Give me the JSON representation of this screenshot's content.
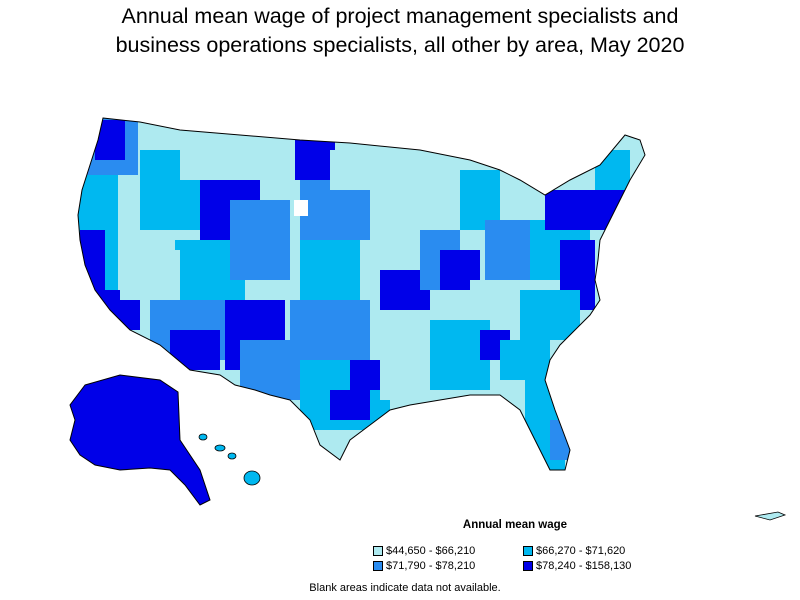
{
  "title_line1": "Annual mean wage of project management specialists and",
  "title_line2": "business operations specialists, all other by area, May 2020",
  "legend": {
    "title": "Annual mean wage",
    "items": [
      {
        "label": "$44,650 - $66,210",
        "color": "#aeeaf0"
      },
      {
        "label": "$66,270 - $71,620",
        "color": "#00b8f0"
      },
      {
        "label": "$71,790 - $78,210",
        "color": "#2a8cf0"
      },
      {
        "label": "$78,240 - $158,130",
        "color": "#0000e8"
      }
    ]
  },
  "note": "Blank areas indicate data not available."
}
